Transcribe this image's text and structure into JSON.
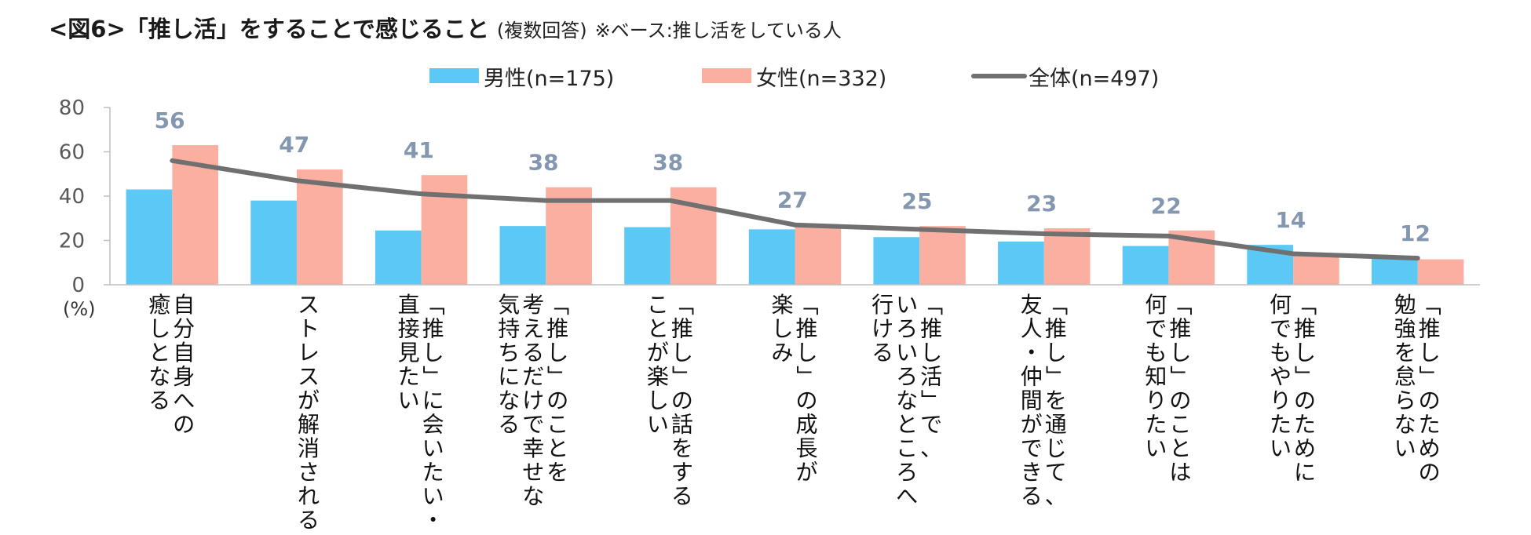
{
  "title": {
    "main": "<図6>「推し活」をすることで感じること",
    "sub": "(複数回答)",
    "note": "※ベース:推し活をしている人"
  },
  "colors": {
    "male": "#5bc8f5",
    "female": "#fbafa1",
    "total": "#707070",
    "value_label": "#8497b0"
  },
  "chart_data": {
    "type": "bar",
    "title": "<図6>「推し活」をすることで感じること",
    "unit_label": "(%)",
    "ylim": [
      0,
      80
    ],
    "yticks": [
      0,
      20,
      40,
      60,
      80
    ],
    "categories": [
      [
        "自分自身への",
        "癒しとなる"
      ],
      [
        "ストレスが解消される"
      ],
      [
        "「推し」に会いたい・",
        "直接見たい"
      ],
      [
        "「推し」のことを",
        "考えるだけで幸せな",
        "気持ちになる"
      ],
      [
        "「推し」の話をする",
        "ことが楽しい"
      ],
      [
        "「推し」の成長が",
        "楽しみ"
      ],
      [
        "「推し活」で、",
        "いろいろなところへ",
        "行ける"
      ],
      [
        "「推し」を通じて、",
        "友人・仲間ができる"
      ],
      [
        "「推し」のことは",
        "何でも知りたい"
      ],
      [
        "「推し」のために",
        "何でもやりたい"
      ],
      [
        "「推し」のための",
        "勉強を怠らない"
      ]
    ],
    "series": [
      {
        "name": "男性(n=175)",
        "kind": "bar",
        "values": [
          43,
          38,
          24.5,
          26.5,
          26,
          25,
          21.5,
          19.5,
          17.5,
          18,
          12
        ]
      },
      {
        "name": "女性(n=332)",
        "kind": "bar",
        "values": [
          63,
          52,
          49.5,
          44,
          44,
          26,
          26.5,
          25.5,
          24.5,
          13,
          11.5
        ]
      },
      {
        "name": "全体(n=497)",
        "kind": "line",
        "values": [
          56,
          47,
          41,
          38,
          38,
          27,
          25,
          23,
          22,
          14,
          12
        ]
      }
    ],
    "data_labels": [
      "56",
      "47",
      "41",
      "38",
      "38",
      "27",
      "25",
      "23",
      "22",
      "14",
      "12"
    ],
    "legend": "top"
  }
}
